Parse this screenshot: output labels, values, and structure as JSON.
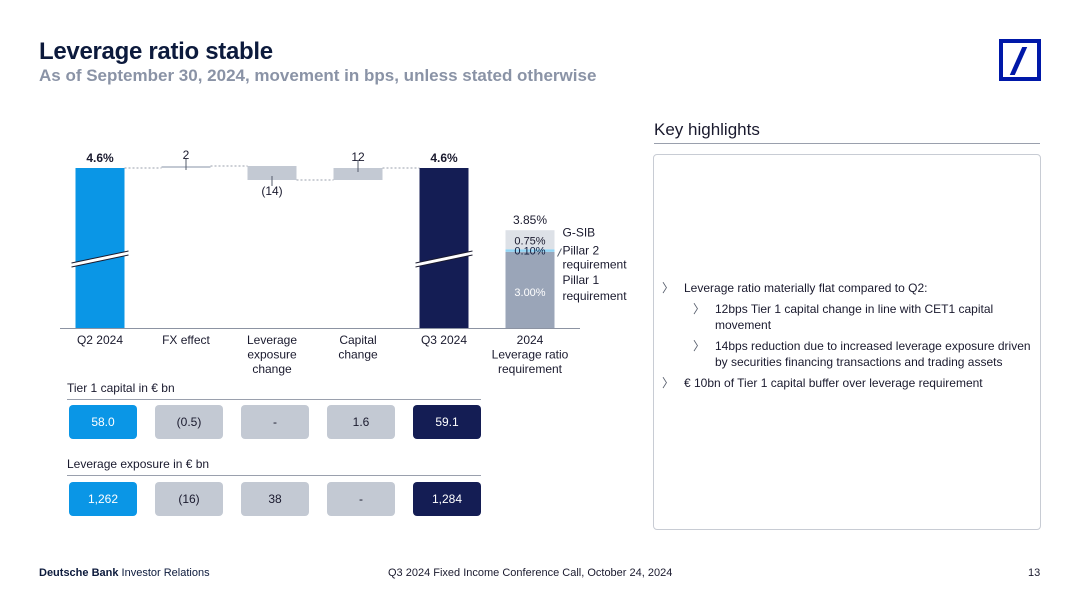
{
  "header": {
    "title": "Leverage ratio stable",
    "subtitle": "As of September 30, 2024, movement in bps, unless stated otherwise"
  },
  "chart_data": {
    "type": "bar",
    "subtype": "waterfall",
    "categories": [
      "Q2 2024",
      "FX effect",
      "Leverage exposure change",
      "Capital change",
      "Q3 2024",
      "2024 Leverage ratio requirement"
    ],
    "category_lines": [
      [
        "Q2 2024"
      ],
      [
        "FX effect"
      ],
      [
        "Leverage",
        "exposure",
        "change"
      ],
      [
        "Capital",
        "change"
      ],
      [
        "Q3 2024"
      ],
      [
        "2024",
        "Leverage ratio",
        "requirement"
      ]
    ],
    "start_value_label": "4.6%",
    "end_value_label": "4.6%",
    "movements_bps": [
      2,
      -14,
      12
    ],
    "movement_labels": [
      "2",
      "(14)",
      "12"
    ],
    "requirement": {
      "total_label": "3.85%",
      "components": [
        {
          "name": "Pillar 1 requirement",
          "name_lines": [
            "Pillar 1",
            "requirement"
          ],
          "value": 3.0,
          "label": "3.00%"
        },
        {
          "name": "Pillar 2 requirement",
          "name_lines": [
            "Pillar 2",
            "requirement"
          ],
          "value": 0.1,
          "label": "0.10%"
        },
        {
          "name": "G-SIB",
          "name_lines": [
            "G-SIB"
          ],
          "value": 0.75,
          "label": "0.75%"
        }
      ]
    },
    "colors": {
      "q2_bar": "#0a96e6",
      "q3_bar": "#141d54",
      "movement_bar": "#c3c9d3",
      "pillar1": "#9aa5b8",
      "pillar2": "#8fd4f5",
      "gsib": "#dde1e7"
    }
  },
  "tier1_capital": {
    "label": "Tier 1 capital in € bn",
    "values": [
      "58.0",
      "(0.5)",
      "-",
      "1.6",
      "59.1"
    ]
  },
  "leverage_exposure": {
    "label": "Leverage exposure in € bn",
    "values": [
      "1,262",
      "(16)",
      "38",
      "-",
      "1,284"
    ]
  },
  "key_highlights": {
    "title": "Key highlights",
    "items": [
      {
        "text": "Leverage ratio materially flat compared to Q2:",
        "level": 1
      },
      {
        "text": "12bps Tier 1 capital change in line with CET1 capital movement",
        "level": 2
      },
      {
        "text": "14bps reduction due to increased leverage exposure driven by securities financing transactions and trading assets",
        "level": 2
      },
      {
        "text": "€ 10bn of Tier 1 capital buffer over leverage requirement",
        "level": 1
      }
    ]
  },
  "footer": {
    "brand": "Deutsche Bank",
    "section": "Investor Relations",
    "event": "Q3 2024 Fixed Income Conference Call, October 24, 2024",
    "page": "13"
  }
}
